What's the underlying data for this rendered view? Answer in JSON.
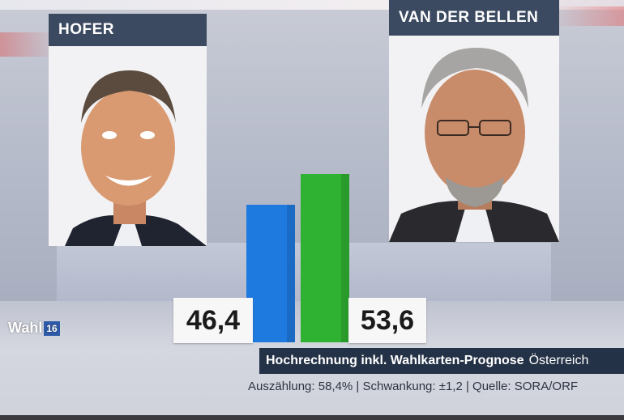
{
  "broadcast": {
    "logo_text": "Wahl",
    "logo_year": "16",
    "caption_title": "Hochrechnung inkl. Wahlkarten-Prognose",
    "caption_region": "Österreich",
    "source_line": "Auszählung: 58,4% | Schwankung: ±1,2 | Quelle: SORA/ORF"
  },
  "candidates": [
    {
      "name": "HOFER",
      "value_label": "46,4",
      "color": "#1f7ae0"
    },
    {
      "name": "VAN DER BELLEN",
      "value_label": "53,6",
      "color": "#2fb131"
    }
  ],
  "chart_data": {
    "type": "bar",
    "categories": [
      "HOFER",
      "VAN DER BELLEN"
    ],
    "values": [
      46.4,
      53.6
    ],
    "colors": [
      "#1f7ae0",
      "#2fb131"
    ],
    "title": "Hochrechnung inkl. Wahlkarten-Prognose Österreich",
    "xlabel": "",
    "ylabel": ""
  }
}
